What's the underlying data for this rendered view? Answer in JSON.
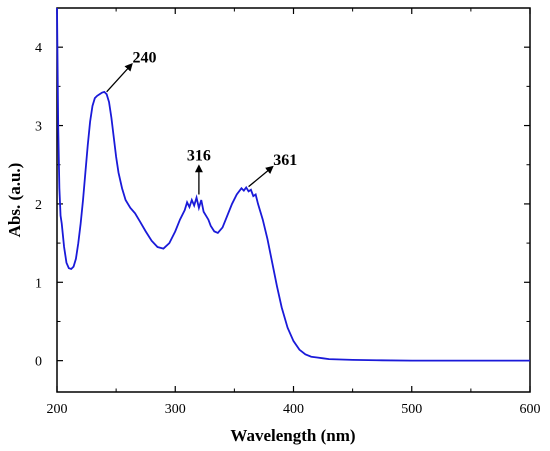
{
  "chart_data": {
    "type": "line",
    "title": "",
    "xlabel": "Wavelength (nm)",
    "ylabel": "Abs. (a.u.)",
    "xlim": [
      200,
      600
    ],
    "ylim": [
      -0.4,
      4.5
    ],
    "grid": false,
    "x_ticks": [
      "200",
      "300",
      "400",
      "500",
      "600"
    ],
    "y_ticks": [
      "0",
      "1",
      "2",
      "3",
      "4"
    ],
    "line_color": "#1a1ad9",
    "series": [
      {
        "x": [
          200,
          201,
          202,
          203,
          204,
          206,
          208,
          210,
          212,
          214,
          216,
          218,
          220,
          222,
          224,
          226,
          228,
          230,
          232,
          234,
          236,
          238,
          240,
          242,
          244,
          246,
          248,
          250,
          252,
          255,
          258,
          262,
          266,
          270,
          275,
          280,
          285,
          290,
          295,
          300,
          304,
          308,
          310,
          312,
          314,
          316,
          318,
          320,
          322,
          324,
          326,
          328,
          330,
          333,
          336,
          340,
          344,
          348,
          352,
          356,
          358,
          360,
          362,
          364,
          366,
          368,
          370,
          374,
          378,
          382,
          386,
          390,
          395,
          400,
          405,
          410,
          415,
          420,
          425,
          430,
          440,
          450,
          470,
          500,
          550,
          600
        ],
        "y": [
          4.5,
          3.0,
          2.2,
          1.85,
          1.75,
          1.45,
          1.25,
          1.18,
          1.17,
          1.2,
          1.3,
          1.5,
          1.75,
          2.05,
          2.4,
          2.75,
          3.05,
          3.25,
          3.35,
          3.38,
          3.4,
          3.42,
          3.43,
          3.4,
          3.3,
          3.1,
          2.85,
          2.6,
          2.4,
          2.2,
          2.05,
          1.95,
          1.88,
          1.78,
          1.65,
          1.53,
          1.45,
          1.43,
          1.5,
          1.65,
          1.8,
          1.92,
          2.02,
          1.96,
          2.05,
          1.98,
          2.08,
          1.95,
          2.05,
          1.9,
          1.85,
          1.8,
          1.72,
          1.65,
          1.63,
          1.7,
          1.85,
          2.0,
          2.12,
          2.2,
          2.17,
          2.21,
          2.16,
          2.18,
          2.1,
          2.12,
          2.0,
          1.8,
          1.55,
          1.25,
          0.95,
          0.68,
          0.42,
          0.25,
          0.14,
          0.08,
          0.05,
          0.04,
          0.03,
          0.02,
          0.015,
          0.01,
          0.005,
          0.0,
          0.0,
          0.0
        ]
      }
    ],
    "annotations": [
      {
        "text": "240",
        "x": 242,
        "y": 3.43,
        "tx": 263,
        "ty": 3.78
      },
      {
        "text": "316",
        "x": 320,
        "y": 2.12,
        "tx": 320,
        "ty": 2.48
      },
      {
        "text": "361",
        "x": 362,
        "y": 2.22,
        "tx": 382,
        "ty": 2.47
      }
    ]
  }
}
